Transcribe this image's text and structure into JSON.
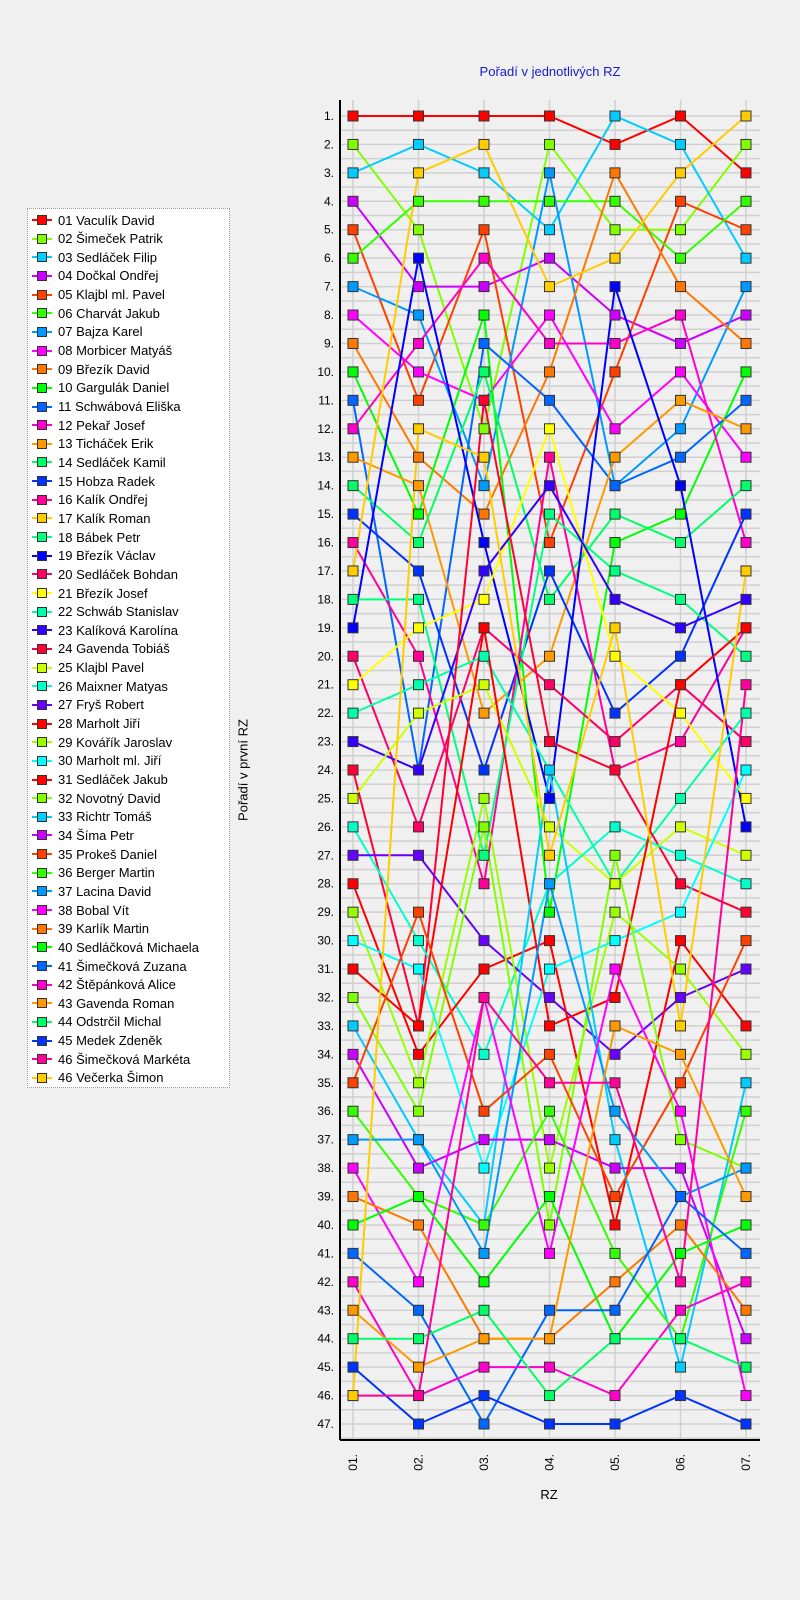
{
  "chart_data": {
    "type": "line",
    "title": "Pořadí v jednotlivých RZ",
    "xlabel": "RZ",
    "ylabel": "Pořadí v první RZ",
    "categories": [
      "01.",
      "02.",
      "03.",
      "04.",
      "05.",
      "06.",
      "07."
    ],
    "ylim": [
      1,
      47
    ],
    "y_inverted": true,
    "grid": true,
    "legend_position": "left",
    "yticks": [
      "1.",
      "2.",
      "3.",
      "4.",
      "5.",
      "6.",
      "7.",
      "8.",
      "9.",
      "10.",
      "11.",
      "12.",
      "13.",
      "14.",
      "15.",
      "16.",
      "17.",
      "18.",
      "19.",
      "20.",
      "21.",
      "22.",
      "23.",
      "24.",
      "25.",
      "26.",
      "27.",
      "28.",
      "29.",
      "30.",
      "31.",
      "32.",
      "33.",
      "34.",
      "35.",
      "36.",
      "37.",
      "38.",
      "39.",
      "40.",
      "41.",
      "42.",
      "43.",
      "44.",
      "45.",
      "46.",
      "47."
    ],
    "series": [
      {
        "name": "01 Vaculík David",
        "color": "#ff0000",
        "values": [
          1,
          1,
          1,
          1,
          2,
          1,
          3
        ]
      },
      {
        "name": "02 Šimeček Patrik",
        "color": "#80ff00",
        "values": [
          2,
          5,
          12,
          2,
          5,
          5,
          2
        ]
      },
      {
        "name": "03 Sedláček Filip",
        "color": "#00ccff",
        "values": [
          3,
          2,
          3,
          5,
          1,
          2,
          6
        ]
      },
      {
        "name": "04 Dočkal Ondřej",
        "color": "#cc00ff",
        "values": [
          4,
          7,
          7,
          6,
          8,
          9,
          8
        ]
      },
      {
        "name": "05 Klajbl ml. Pavel",
        "color": "#ff4000",
        "values": [
          5,
          11,
          5,
          16,
          10,
          4,
          5
        ]
      },
      {
        "name": "06 Charvát Jakub",
        "color": "#33ff00",
        "values": [
          6,
          4,
          4,
          4,
          4,
          6,
          4
        ]
      },
      {
        "name": "07 Bajza Karel",
        "color": "#0099ff",
        "values": [
          7,
          8,
          14,
          3,
          14,
          12,
          7
        ]
      },
      {
        "name": "08 Morbicer Matyáš",
        "color": "#ff00ff",
        "values": [
          8,
          10,
          11,
          8,
          12,
          10,
          13
        ]
      },
      {
        "name": "09 Březík David",
        "color": "#ff7700",
        "values": [
          9,
          13,
          15,
          10,
          3,
          7,
          9
        ]
      },
      {
        "name": "10 Gargulák Daniel",
        "color": "#00ff00",
        "values": [
          10,
          15,
          8,
          29,
          16,
          15,
          10
        ]
      },
      {
        "name": "11 Schwábová Eliška",
        "color": "#0066ff",
        "values": [
          11,
          24,
          9,
          11,
          14,
          13,
          11
        ]
      },
      {
        "name": "12 Pekař Josef",
        "color": "#ff00cc",
        "values": [
          12,
          9,
          6,
          9,
          9,
          8,
          16
        ]
      },
      {
        "name": "13 Ticháček Erik",
        "color": "#ff9900",
        "values": [
          13,
          14,
          22,
          20,
          13,
          11,
          12
        ]
      },
      {
        "name": "14 Sedláček Kamil",
        "color": "#00ff66",
        "values": [
          14,
          16,
          10,
          18,
          15,
          16,
          14
        ]
      },
      {
        "name": "15 Hobza Radek",
        "color": "#0033ff",
        "values": [
          15,
          17,
          24,
          17,
          22,
          20,
          15
        ]
      },
      {
        "name": "16 Kalík Ondřej",
        "color": "#ff0099",
        "values": [
          16,
          20,
          28,
          13,
          24,
          23,
          19
        ]
      },
      {
        "name": "17 Kalík Roman",
        "color": "#ffcc00",
        "values": [
          17,
          3,
          2,
          7,
          6,
          3,
          1
        ]
      },
      {
        "name": "18 Bábek Petr",
        "color": "#00ff80",
        "values": [
          18,
          18,
          27,
          15,
          17,
          18,
          20
        ]
      },
      {
        "name": "19 Březík Václav",
        "color": "#0000ff",
        "values": [
          19,
          6,
          16,
          25,
          7,
          14,
          26
        ]
      },
      {
        "name": "20 Sedláček Bohdan",
        "color": "#ff0066",
        "values": [
          20,
          26,
          19,
          21,
          23,
          21,
          23
        ]
      },
      {
        "name": "21 Březík Josef",
        "color": "#ffff00",
        "values": [
          21,
          19,
          18,
          12,
          20,
          22,
          25
        ]
      },
      {
        "name": "22 Schwáb Stanislav",
        "color": "#00ffaa",
        "values": [
          22,
          21,
          20,
          24,
          28,
          25,
          22
        ]
      },
      {
        "name": "23 Kalíková Karolína",
        "color": "#3300ff",
        "values": [
          23,
          24,
          17,
          14,
          18,
          19,
          18
        ]
      },
      {
        "name": "24 Gavenda Tobiáš",
        "color": "#ff0033",
        "values": [
          24,
          33,
          11,
          23,
          24,
          28,
          29
        ]
      },
      {
        "name": "25 Klajbl Pavel",
        "color": "#ccff00",
        "values": [
          25,
          22,
          21,
          26,
          28,
          26,
          27
        ]
      },
      {
        "name": "26 Maixner Matyas",
        "color": "#00ffcc",
        "values": [
          26,
          30,
          34,
          28,
          26,
          27,
          28
        ]
      },
      {
        "name": "27 Fryš Robert",
        "color": "#6600ff",
        "values": [
          27,
          27,
          30,
          32,
          34,
          32,
          31
        ]
      },
      {
        "name": "28 Marholt Jiří",
        "color": "#ff0000",
        "values": [
          28,
          34,
          31,
          30,
          40,
          30,
          33
        ]
      },
      {
        "name": "29 Kovářík Jaroslav",
        "color": "#99ff00",
        "values": [
          29,
          35,
          25,
          38,
          29,
          31,
          34
        ]
      },
      {
        "name": "30 Marholt ml. Jiří",
        "color": "#00ffff",
        "values": [
          30,
          31,
          38,
          31,
          30,
          29,
          24
        ]
      },
      {
        "name": "31 Sedláček Jakub",
        "color": "#ff0000",
        "values": [
          31,
          33,
          19,
          33,
          32,
          21,
          19
        ]
      },
      {
        "name": "32 Novotný David",
        "color": "#80ff00",
        "values": [
          32,
          36,
          26,
          40,
          27,
          37,
          38
        ]
      },
      {
        "name": "33 Richtr Tomáš",
        "color": "#00ccff",
        "values": [
          33,
          37,
          40,
          24,
          37,
          45,
          35
        ]
      },
      {
        "name": "34 Šíma Petr",
        "color": "#cc00ff",
        "values": [
          34,
          38,
          37,
          37,
          38,
          38,
          44
        ]
      },
      {
        "name": "35 Prokeš Daniel",
        "color": "#ff4000",
        "values": [
          35,
          29,
          36,
          34,
          39,
          35,
          30
        ]
      },
      {
        "name": "36 Berger Martin",
        "color": "#33ff00",
        "values": [
          36,
          39,
          40,
          36,
          41,
          44,
          36
        ]
      },
      {
        "name": "37 Lacina David",
        "color": "#0099ff",
        "values": [
          37,
          37,
          41,
          28,
          36,
          39,
          38
        ]
      },
      {
        "name": "38 Bobal Vít",
        "color": "#ff00ff",
        "values": [
          38,
          42,
          32,
          41,
          31,
          36,
          46
        ]
      },
      {
        "name": "39 Karlík Martin",
        "color": "#ff7700",
        "values": [
          39,
          40,
          44,
          44,
          42,
          40,
          43
        ]
      },
      {
        "name": "40 Sedláčková Michaela",
        "color": "#00ff00",
        "values": [
          40,
          39,
          42,
          39,
          44,
          41,
          40
        ]
      },
      {
        "name": "41 Šimečková Zuzana",
        "color": "#0066ff",
        "values": [
          41,
          43,
          47,
          43,
          43,
          39,
          41
        ]
      },
      {
        "name": "42 Štěpánková Alice",
        "color": "#ff00cc",
        "values": [
          42,
          46,
          45,
          45,
          46,
          43,
          42
        ]
      },
      {
        "name": "43 Gavenda Roman",
        "color": "#ff9900",
        "values": [
          43,
          45,
          44,
          44,
          33,
          34,
          39
        ]
      },
      {
        "name": "44 Odstrčil Michal",
        "color": "#00ff66",
        "values": [
          44,
          44,
          43,
          46,
          44,
          44,
          45
        ]
      },
      {
        "name": "45 Medek Zdeněk",
        "color": "#0033ff",
        "values": [
          45,
          47,
          46,
          47,
          47,
          46,
          47
        ]
      },
      {
        "name": "46 Šimečková Markéta",
        "color": "#ff0099",
        "values": [
          46,
          46,
          32,
          35,
          35,
          42,
          21
        ]
      },
      {
        "name": "46 Večerka Šimon",
        "color": "#ffcc00",
        "values": [
          46,
          12,
          13,
          27,
          19,
          33,
          17
        ]
      }
    ]
  }
}
